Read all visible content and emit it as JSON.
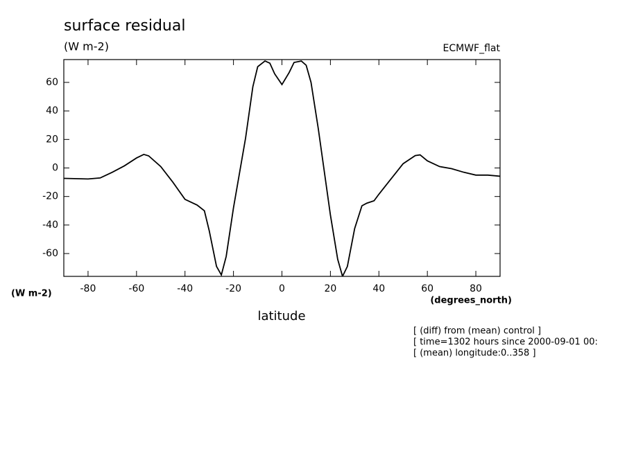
{
  "chart_data": {
    "type": "line",
    "title": "surface residual",
    "units": "(W m-2)",
    "source": "ECMWF_flat",
    "ylabel": "(W m-2)",
    "xunits": "(degrees_north)",
    "xlabel": "latitude",
    "annotations": [
      "[ (diff) from (mean) control ]",
      "[ time=1302 hours since 2000-09-01 00:",
      "[ (mean) longitude:0..358 ]"
    ],
    "x": [
      -90,
      -80,
      -75,
      -70,
      -65,
      -60,
      -57,
      -55,
      -50,
      -45,
      -40,
      -35,
      -32,
      -30,
      -27,
      -25,
      -23,
      -20,
      -15,
      -12,
      -10,
      -7,
      -5,
      -3,
      0,
      3,
      5,
      8,
      10,
      12,
      15,
      20,
      23,
      25,
      27,
      30,
      33,
      35,
      38,
      40,
      45,
      50,
      55,
      57,
      60,
      65,
      70,
      75,
      80,
      85,
      90
    ],
    "series": [
      {
        "name": "surface residual",
        "color": "#000000",
        "values": [
          -7.3,
          -7.7,
          -7,
          -3,
          1.5,
          7,
          9.5,
          8.5,
          1,
          -10,
          -22,
          -26,
          -30,
          -44,
          -69,
          -75,
          -62,
          -28,
          21,
          57,
          71,
          75,
          73.5,
          66,
          58.5,
          67,
          74,
          75,
          72,
          60,
          27.5,
          -33,
          -64,
          -76,
          -69,
          -42.5,
          -26.5,
          -24.7,
          -23,
          -18.4,
          -7.7,
          3,
          8.7,
          9.2,
          5,
          1,
          -0.5,
          -3,
          -5,
          -5,
          -5.8
        ]
      }
    ],
    "xlim": [
      -90,
      90
    ],
    "xticks": [
      -80,
      -60,
      -40,
      -20,
      0,
      20,
      40,
      60,
      80
    ],
    "ylim": [
      -76,
      76
    ],
    "yticks": [
      -60,
      -40,
      -20,
      0,
      20,
      40,
      60
    ],
    "grid": false
  }
}
